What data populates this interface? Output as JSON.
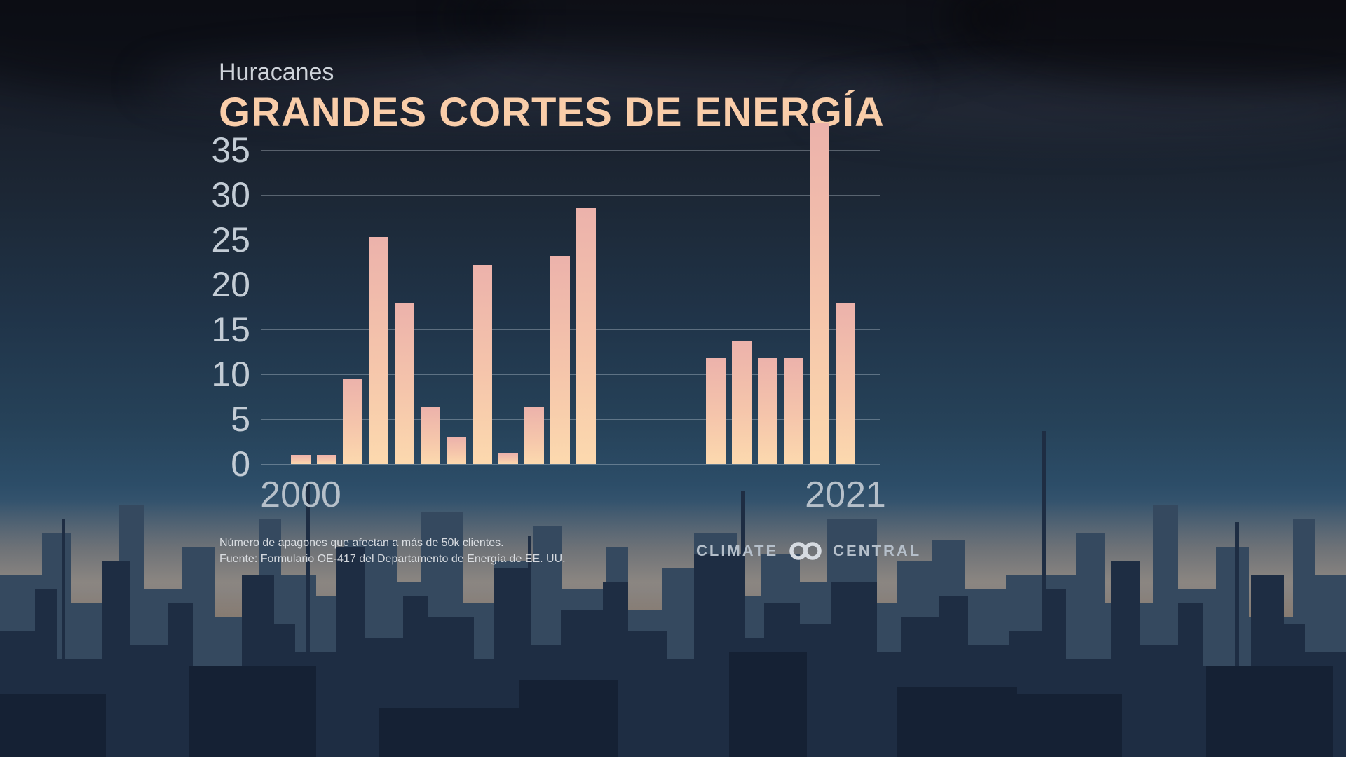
{
  "header": {
    "kicker": "Huracanes",
    "title": "GRANDES CORTES DE ENERGÍA"
  },
  "chart_data": {
    "type": "bar",
    "title": "GRANDES CORTES DE ENERGÍA",
    "kicker": "Huracanes",
    "x": [
      2000,
      2001,
      2002,
      2003,
      2004,
      2005,
      2006,
      2007,
      2008,
      2009,
      2010,
      2011,
      2012,
      2013,
      2014,
      2015,
      2016,
      2017,
      2018,
      2019,
      2020,
      2021
    ],
    "values": [
      1,
      1,
      9.5,
      25.3,
      18,
      6.4,
      3,
      22.2,
      1.2,
      6.4,
      23.2,
      28.5,
      0,
      0,
      0,
      0,
      11.8,
      13.7,
      11.8,
      11.8,
      38,
      18
    ],
    "yticks": [
      0,
      5,
      10,
      15,
      20,
      25,
      30,
      35
    ],
    "ylim": [
      0,
      38
    ],
    "x_axis_labels": [
      "2000",
      "2021"
    ],
    "grid": "horizontal",
    "legend": "none",
    "bar_gradient": [
      "#ecb2ab",
      "#fcd9ae"
    ]
  },
  "footnote": {
    "line1": "Número de apagones que afectan a más de 50k clientes.",
    "line2": "Fuente: Formulario OE-417 del Departamento de Energía de EE. UU."
  },
  "logo": {
    "climate": "CLIMATE",
    "central": "CENTRAL"
  }
}
